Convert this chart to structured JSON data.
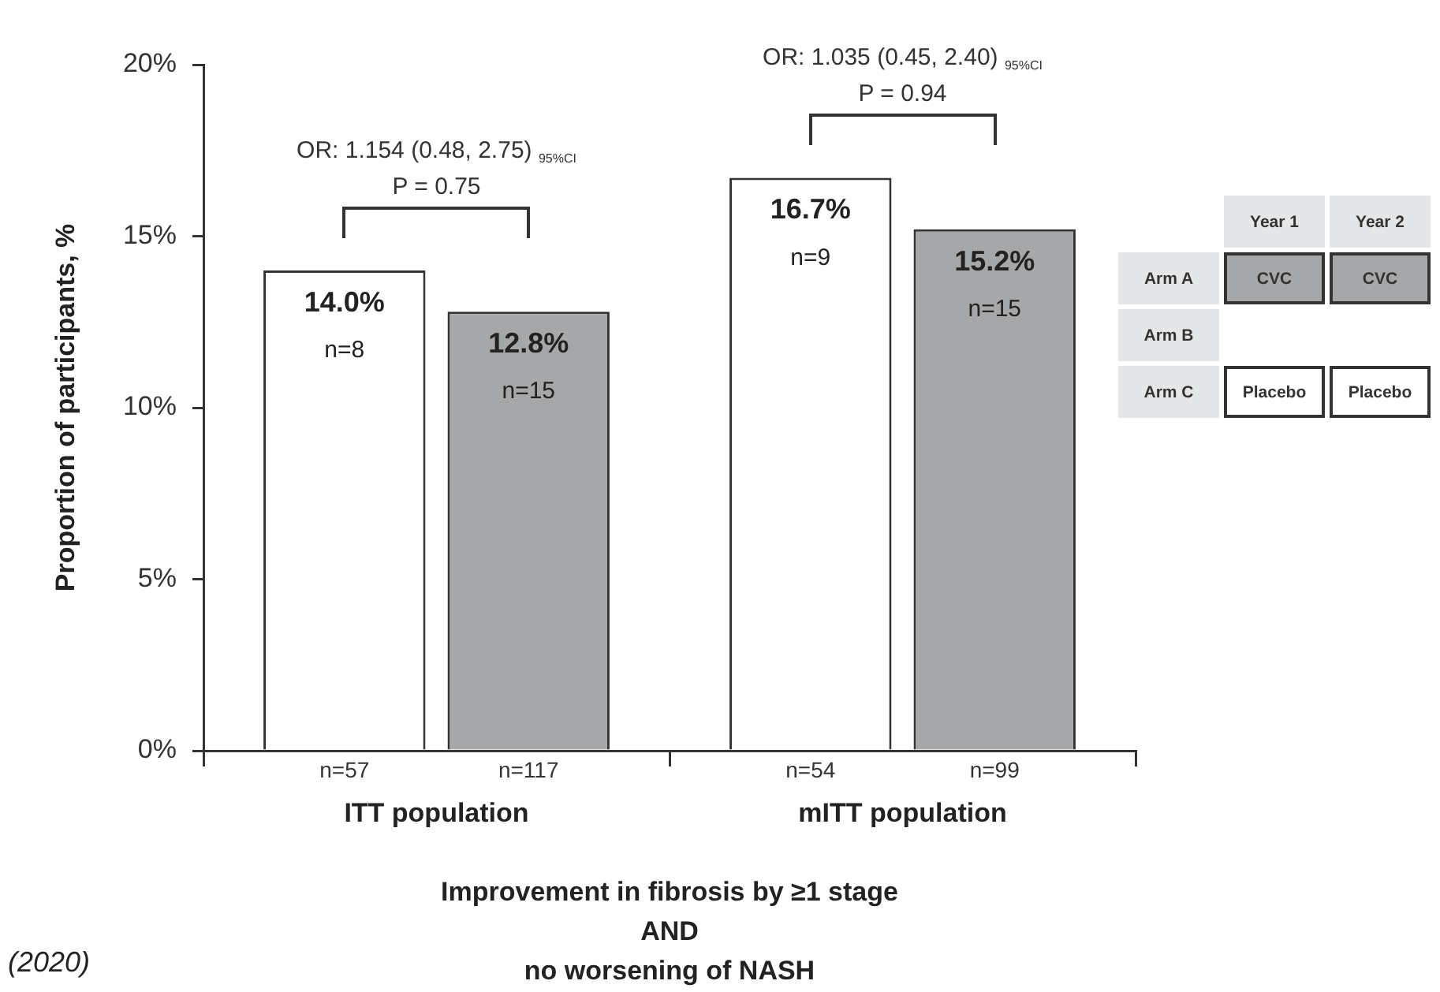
{
  "chart_data": [
    {
      "type": "bar",
      "categories": [
        "ITT population",
        "mITT population"
      ],
      "series": [
        {
          "color": "#ffffff",
          "values": [
            14.0,
            16.7
          ],
          "value_labels": [
            "14.0%\nn=8",
            "16.7%\nn=9"
          ]
        },
        {
          "color": "#a6a7a9",
          "values": [
            12.8,
            15.2
          ],
          "value_labels": [
            "12.8%\nn=15",
            "15.2%\nn=15"
          ]
        }
      ],
      "ylim": [
        0,
        20
      ],
      "yticks": [
        {
          "value": 0,
          "label": "0%"
        },
        {
          "value": 5,
          "label": "5%"
        },
        {
          "value": 10,
          "label": "10%"
        },
        {
          "value": 15,
          "label": "15%"
        },
        {
          "value": 20,
          "label": "20%"
        }
      ],
      "ylabel": "Proportion of participants, %",
      "xlabel": "Improvement in fibrosis by ≥1 stage\nAND\nno worsening of NASH",
      "annotations": [
        "OR: 1.154 (0.48, 2.75) $_{95%CI}$\nP = 0.75",
        "OR: 1.035 (0.45, 2.40) $_{95%CI}$\nP = 0.94",
        "n=57",
        "n=117",
        "n=54",
        "n=99",
        "(2020)"
      ]
    },
    {
      "type": "other",
      "categories": [
        "Year 1",
        "Year 2"
      ],
      "y_categories": [
        "Arm A",
        "Arm B",
        "Arm C"
      ],
      "cell_labels": [
        [
          "CVC",
          "CVC"
        ],
        [
          null,
          null
        ],
        [
          "Placebo",
          "Placebo"
        ]
      ],
      "colors": [
        [
          "#a6a7a9",
          "#a6a7a9"
        ],
        [
          null,
          null
        ],
        [
          "#ffffff",
          "#ffffff"
        ]
      ]
    }
  ]
}
